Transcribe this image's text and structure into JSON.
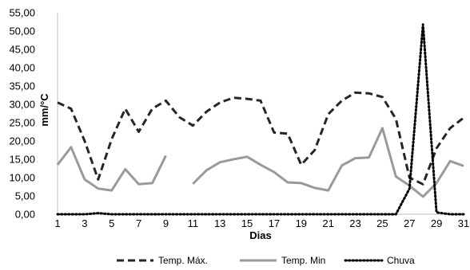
{
  "chart_data": {
    "type": "line",
    "ylabel": "mm/°C",
    "xlabel": "Dias",
    "ylim": [
      0,
      55
    ],
    "yticks": [
      "0,00",
      "5,00",
      "10,00",
      "15,00",
      "20,00",
      "25,00",
      "30,00",
      "35,00",
      "40,00",
      "45,00",
      "50,00",
      "55,00"
    ],
    "x": [
      1,
      2,
      3,
      4,
      5,
      6,
      7,
      8,
      9,
      10,
      11,
      12,
      13,
      14,
      15,
      16,
      17,
      18,
      19,
      20,
      21,
      22,
      23,
      24,
      25,
      26,
      27,
      28,
      29,
      30,
      31
    ],
    "xticks": [
      "1",
      "3",
      "5",
      "7",
      "9",
      "11",
      "13",
      "15",
      "17",
      "19",
      "21",
      "23",
      "25",
      "27",
      "29",
      "31"
    ],
    "grid": false,
    "legend_position": "bottom",
    "series": [
      {
        "name": "Temp. Máx.",
        "color": "#262626",
        "style": "dashed",
        "values": [
          30.5,
          28.8,
          20.0,
          9.5,
          20.5,
          28.8,
          22.5,
          28.8,
          31.0,
          26.5,
          24.2,
          28.0,
          30.5,
          31.8,
          31.5,
          31.0,
          22.3,
          22.0,
          13.5,
          17.5,
          27.3,
          31.0,
          33.2,
          33.0,
          32.0,
          26.0,
          10.0,
          8.2,
          18.0,
          23.5,
          26.3
        ]
      },
      {
        "name": "Temp. Min",
        "color": "#9a9a9a",
        "style": "solid",
        "values": [
          13.5,
          18.3,
          9.5,
          7.0,
          6.5,
          12.3,
          8.2,
          8.5,
          16.0,
          null,
          8.3,
          12.0,
          14.2,
          15.0,
          15.7,
          13.5,
          11.5,
          8.7,
          8.5,
          7.2,
          6.5,
          13.3,
          15.3,
          15.5,
          23.5,
          10.3,
          7.8,
          4.8,
          8.5,
          14.5,
          13.2
        ]
      },
      {
        "name": "Chuva",
        "color": "#000000",
        "style": "dotted",
        "values": [
          0,
          0,
          0,
          0.3,
          0,
          0,
          0,
          0,
          0,
          0,
          0,
          0,
          0,
          0,
          0,
          0,
          0,
          0,
          0,
          0,
          0,
          0,
          0,
          0,
          0,
          0,
          7,
          51.8,
          0.5,
          0,
          0
        ]
      }
    ]
  }
}
